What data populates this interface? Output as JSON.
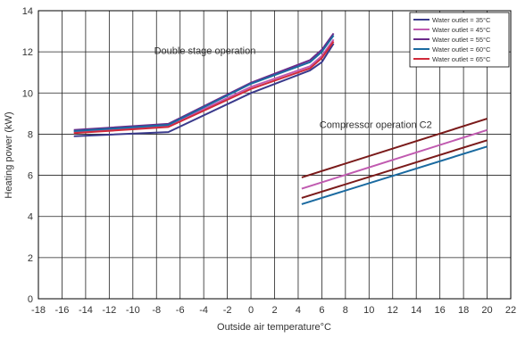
{
  "chart_data": {
    "type": "line",
    "xlabel": "Outside air temperature°C",
    "ylabel": "Heating power (kW)",
    "xlim": [
      -18,
      22
    ],
    "ylim": [
      0,
      14
    ],
    "xticks": [
      -18,
      -16,
      -14,
      -12,
      -10,
      -8,
      -6,
      -4,
      -2,
      0,
      2,
      4,
      6,
      8,
      10,
      12,
      14,
      16,
      18,
      20,
      22
    ],
    "yticks": [
      0,
      2,
      4,
      6,
      8,
      10,
      12,
      14
    ],
    "grid": true,
    "legend_position": "top-right",
    "legend": [
      {
        "label": "Water  outlet = 35°C",
        "color": "#3a3a8c"
      },
      {
        "label": "Water  outlet = 45°C",
        "color": "#c05ab0"
      },
      {
        "label": "Water  outlet = 55°C",
        "color": "#6a2a8a"
      },
      {
        "label": "Water  outlet = 60°C",
        "color": "#1a6aa0"
      },
      {
        "label": "Water  outlet = 65°C",
        "color": "#d02a3a"
      }
    ],
    "annotations": [
      {
        "text": "Double stage operation",
        "x": -8.2,
        "y": 11.9
      },
      {
        "text": "Compressor operation C2",
        "x": 5.8,
        "y": 8.3
      }
    ],
    "series": [
      {
        "color": "#3a3a8c",
        "points": [
          [
            -15,
            7.9
          ],
          [
            -7,
            8.1
          ],
          [
            0,
            10.0
          ],
          [
            5,
            11.1
          ],
          [
            6,
            11.5
          ],
          [
            7,
            12.4
          ]
        ]
      },
      {
        "color": "#c05ab0",
        "points": [
          [
            -15,
            8.1
          ],
          [
            -7,
            8.4
          ],
          [
            0,
            10.3
          ],
          [
            5,
            11.3
          ],
          [
            6,
            11.8
          ],
          [
            7,
            12.6
          ]
        ]
      },
      {
        "color": "#6a2a8a",
        "points": [
          [
            -15,
            8.2
          ],
          [
            -7,
            8.5
          ],
          [
            0,
            10.5
          ],
          [
            5,
            11.6
          ],
          [
            6,
            12.1
          ],
          [
            7,
            12.9
          ]
        ]
      },
      {
        "color": "#1a6aa0",
        "points": [
          [
            -15,
            8.15
          ],
          [
            -7,
            8.45
          ],
          [
            0,
            10.45
          ],
          [
            5,
            11.5
          ],
          [
            6,
            12.0
          ],
          [
            7,
            12.8
          ]
        ]
      },
      {
        "color": "#d02a3a",
        "points": [
          [
            -15,
            8.05
          ],
          [
            -7,
            8.35
          ],
          [
            0,
            10.2
          ],
          [
            5,
            11.2
          ],
          [
            6,
            11.7
          ],
          [
            7,
            12.5
          ]
        ]
      },
      {
        "color": "#1a6aa0",
        "points": [
          [
            4.3,
            4.6
          ],
          [
            20,
            7.4
          ]
        ]
      },
      {
        "color": "#7a1a1a",
        "points": [
          [
            4.3,
            4.9
          ],
          [
            20,
            7.7
          ]
        ]
      },
      {
        "color": "#c05ab0",
        "points": [
          [
            4.3,
            5.35
          ],
          [
            20,
            8.2
          ]
        ]
      },
      {
        "color": "#7a1a1a",
        "points": [
          [
            4.3,
            5.9
          ],
          [
            20,
            8.75
          ]
        ]
      }
    ]
  }
}
